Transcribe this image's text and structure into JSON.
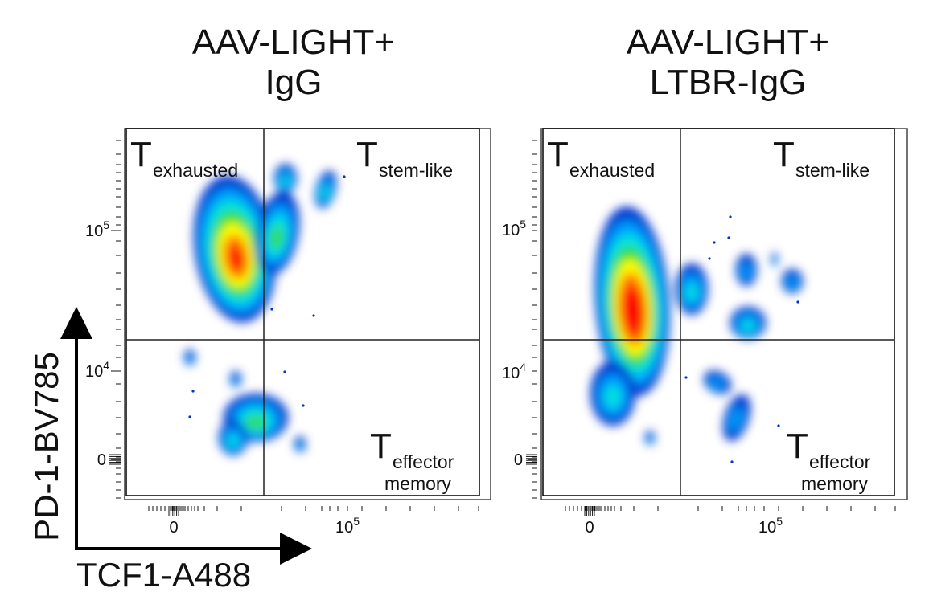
{
  "chart_data": {
    "type": "heatmap",
    "plot_kind": "flow cytometry pseudocolor density plot",
    "xlabel": "TCF1-A488",
    "ylabel": "PD-1-BV785",
    "x_ticks": [
      "0",
      "10^5"
    ],
    "y_ticks": [
      "0",
      "10^4",
      "10^5"
    ],
    "colormap": [
      "#0033cc",
      "#0099ff",
      "#00e0e0",
      "#33dd33",
      "#ffff00",
      "#ff7700",
      "#ff0000"
    ],
    "panels": [
      {
        "title_lines": [
          "AAV-LIGHT+",
          "IgG"
        ],
        "gates": {
          "top_left": {
            "label_main": "T",
            "label_sub": "exhausted"
          },
          "top_right": {
            "label_main": "T",
            "label_sub": "stem-like"
          },
          "bottom_right": {
            "label_main": "T",
            "label_sub": "effector",
            "label_sub2": "memory"
          }
        }
      },
      {
        "title_lines": [
          "AAV-LIGHT+",
          "LTBR-IgG"
        ],
        "gates": {
          "top_left": {
            "label_main": "T",
            "label_sub": "exhausted"
          },
          "top_right": {
            "label_main": "T",
            "label_sub": "stem-like"
          },
          "bottom_right": {
            "label_main": "T",
            "label_sub": "effector",
            "label_sub2": "memory"
          }
        }
      }
    ]
  }
}
